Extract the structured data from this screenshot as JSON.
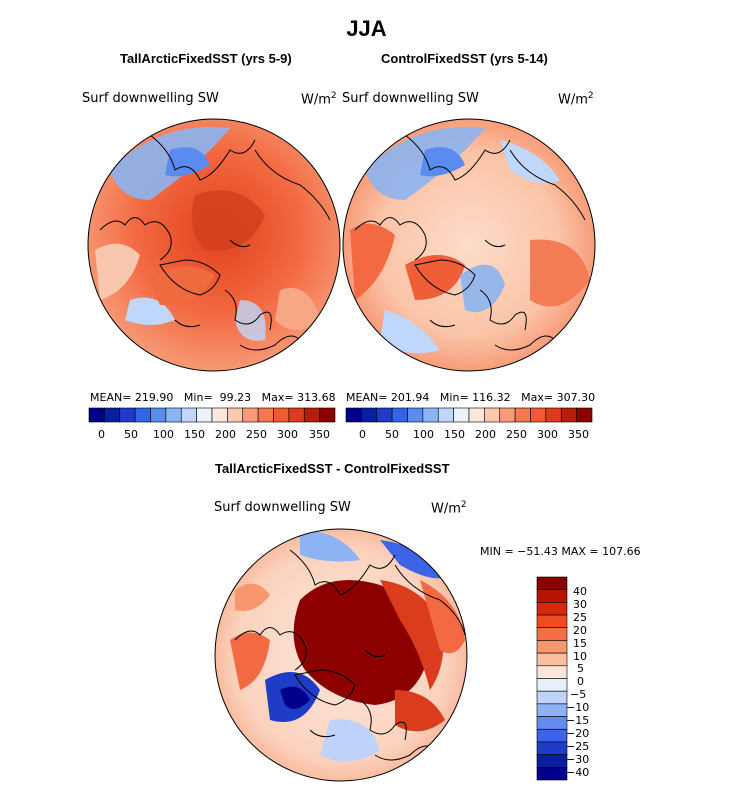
{
  "season_title": "JJA",
  "panels": [
    {
      "title": "TallArcticFixedSST (yrs 5-9)",
      "variable": "Surf downwelling SW",
      "units_base": "W/m",
      "units_exp": "2",
      "stats": {
        "mean_label": "MEAN=",
        "mean": "219.90",
        "min_label": "Min=",
        "min": "99.23",
        "max_label": "Max=",
        "max": "313.68"
      },
      "tick_labels": [
        "0",
        "50",
        "100",
        "150",
        "200",
        "250",
        "300",
        "350"
      ]
    },
    {
      "title": "ControlFixedSST (yrs 5-14)",
      "variable": "Surf downwelling SW",
      "units_base": "W/m",
      "units_exp": "2",
      "stats": {
        "mean_label": "MEAN=",
        "mean": "201.94",
        "min_label": "Min=",
        "min": "116.32",
        "max_label": "Max=",
        "max": "307.30"
      },
      "tick_labels": [
        "0",
        "50",
        "100",
        "150",
        "200",
        "250",
        "300",
        "350"
      ]
    }
  ],
  "diff_panel": {
    "title": "TallArcticFixedSST - ControlFixedSST",
    "variable": "Surf downwelling SW",
    "units_base": "W/m",
    "units_exp": "2",
    "minmax_text": "MIN = −51.43 MAX = 107.66",
    "tick_labels": [
      "40",
      "30",
      "25",
      "20",
      "15",
      "10",
      "5",
      "0",
      "−5",
      "−10",
      "−15",
      "−20",
      "−25",
      "−30",
      "−40"
    ]
  },
  "colors": {
    "abs_scale": [
      "#00008b",
      "#0a1ea0",
      "#1e3cc8",
      "#3264e6",
      "#5a8cf0",
      "#8cb4f5",
      "#bed7fa",
      "#eaf2fc",
      "#fde6dc",
      "#fcc8b0",
      "#fa9b78",
      "#f5784f",
      "#ef5a32",
      "#dc3c1e",
      "#b41e0a",
      "#8c0000"
    ],
    "diff_scale": [
      "#8c0000",
      "#b41400",
      "#d22a0a",
      "#f04a1e",
      "#f56e46",
      "#f8966e",
      "#fbbea0",
      "#fde6d9",
      "#e6f0fa",
      "#bed2fa",
      "#8cb4f5",
      "#648cf0",
      "#3c64e6",
      "#1e3cc8",
      "#0a1ea0",
      "#00008b"
    ],
    "ocean_warm": "#f57a52",
    "land_light": "#f8d0bc",
    "cool_blue": "#8cb4f0",
    "diff_core": "#8c0000"
  }
}
